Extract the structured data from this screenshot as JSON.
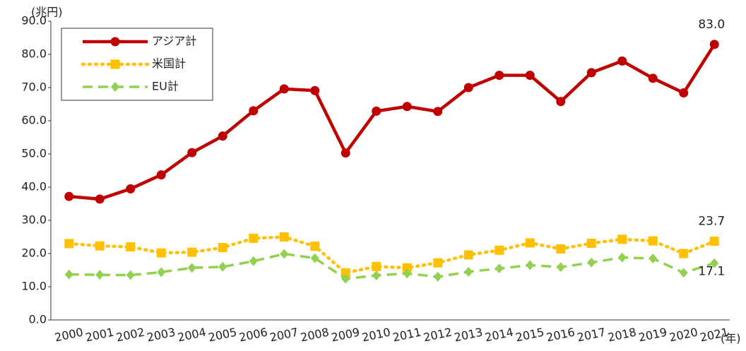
{
  "chart_data": {
    "type": "line",
    "y_unit": "(兆円)",
    "x_unit": "(年)",
    "categories": [
      "2000",
      "2001",
      "2002",
      "2003",
      "2004",
      "2005",
      "2006",
      "2007",
      "2008",
      "2009",
      "2010",
      "2011",
      "2012",
      "2013",
      "2014",
      "2015",
      "2016",
      "2017",
      "2018",
      "2019",
      "2020",
      "2021"
    ],
    "series": [
      {
        "name": "アジア計",
        "color": "#c00000",
        "line_style": "solid",
        "marker": "circle",
        "values": [
          37.2,
          36.4,
          39.5,
          43.7,
          50.4,
          55.4,
          63.0,
          69.6,
          69.1,
          50.3,
          62.9,
          64.3,
          62.8,
          70.0,
          73.7,
          73.7,
          65.8,
          74.5,
          78.0,
          72.8,
          68.4,
          83.0
        ],
        "value_labels": [
          null,
          null,
          null,
          null,
          null,
          null,
          null,
          null,
          null,
          null,
          null,
          null,
          null,
          null,
          null,
          null,
          null,
          null,
          null,
          null,
          null,
          "83.0"
        ]
      },
      {
        "name": "米国計",
        "color": "#ffc000",
        "line_style": "dotted",
        "marker": "square",
        "values": [
          23.0,
          22.3,
          22.0,
          20.2,
          20.4,
          21.8,
          24.6,
          25.0,
          22.2,
          14.2,
          16.1,
          15.7,
          17.2,
          19.6,
          21.0,
          23.2,
          21.4,
          23.1,
          24.3,
          23.8,
          20.0,
          23.7
        ],
        "value_labels": [
          null,
          null,
          null,
          null,
          null,
          null,
          null,
          null,
          null,
          null,
          null,
          null,
          null,
          null,
          null,
          null,
          null,
          null,
          null,
          null,
          null,
          "23.7"
        ]
      },
      {
        "name": "EU計",
        "color": "#92d050",
        "line_style": "dashed",
        "marker": "diamond",
        "values": [
          13.7,
          13.6,
          13.5,
          14.4,
          15.7,
          16.0,
          17.7,
          19.9,
          18.6,
          12.4,
          13.4,
          14.0,
          13.0,
          14.5,
          15.5,
          16.5,
          15.9,
          17.3,
          18.8,
          18.5,
          14.2,
          17.1
        ],
        "value_labels": [
          null,
          null,
          null,
          null,
          null,
          null,
          null,
          null,
          null,
          null,
          null,
          null,
          null,
          null,
          null,
          null,
          null,
          null,
          null,
          null,
          null,
          "17.1"
        ]
      }
    ],
    "ylim": [
      0,
      90
    ],
    "yticks": [
      {
        "value": 0,
        "label": "0.0"
      },
      {
        "value": 10,
        "label": "10.0"
      },
      {
        "value": 20,
        "label": "20.0"
      },
      {
        "value": 30,
        "label": "30.0"
      },
      {
        "value": 40,
        "label": "40.0"
      },
      {
        "value": 50,
        "label": "50.0"
      },
      {
        "value": 60,
        "label": "60.0"
      },
      {
        "value": 70,
        "label": "70.0"
      },
      {
        "value": 80,
        "label": "80.0"
      },
      {
        "value": 90,
        "label": "90.0"
      }
    ],
    "grid": false,
    "legend": "upper left"
  }
}
